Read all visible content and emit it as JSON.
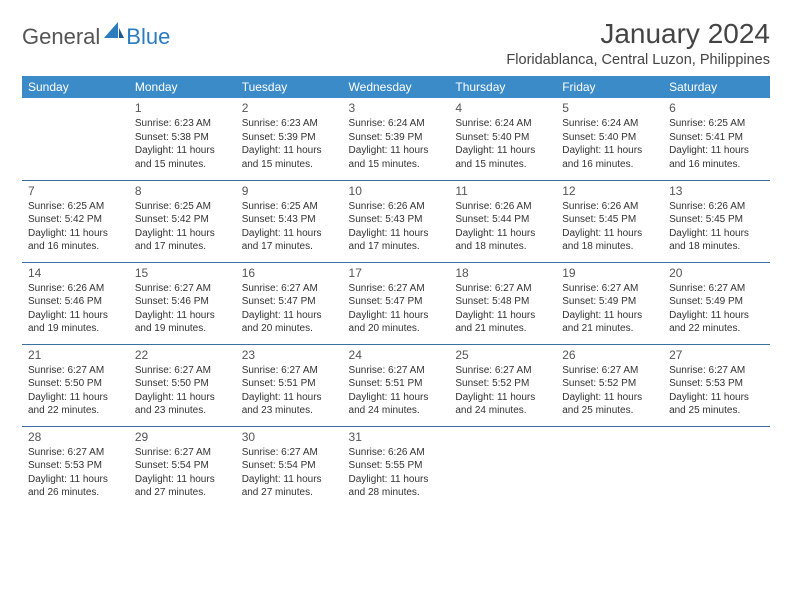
{
  "logo": {
    "part1": "General",
    "part2": "Blue"
  },
  "title": "January 2024",
  "location": "Floridablanca, Central Luzon, Philippines",
  "colors": {
    "header_bg": "#3b8bc9",
    "header_text": "#ffffff",
    "row_border": "#3b6fa0",
    "logo_blue": "#2b7bbf",
    "text": "#333333"
  },
  "weekdays": [
    "Sunday",
    "Monday",
    "Tuesday",
    "Wednesday",
    "Thursday",
    "Friday",
    "Saturday"
  ],
  "weeks": [
    [
      null,
      {
        "n": "1",
        "sr": "Sunrise: 6:23 AM",
        "ss": "Sunset: 5:38 PM",
        "d1": "Daylight: 11 hours",
        "d2": "and 15 minutes."
      },
      {
        "n": "2",
        "sr": "Sunrise: 6:23 AM",
        "ss": "Sunset: 5:39 PM",
        "d1": "Daylight: 11 hours",
        "d2": "and 15 minutes."
      },
      {
        "n": "3",
        "sr": "Sunrise: 6:24 AM",
        "ss": "Sunset: 5:39 PM",
        "d1": "Daylight: 11 hours",
        "d2": "and 15 minutes."
      },
      {
        "n": "4",
        "sr": "Sunrise: 6:24 AM",
        "ss": "Sunset: 5:40 PM",
        "d1": "Daylight: 11 hours",
        "d2": "and 15 minutes."
      },
      {
        "n": "5",
        "sr": "Sunrise: 6:24 AM",
        "ss": "Sunset: 5:40 PM",
        "d1": "Daylight: 11 hours",
        "d2": "and 16 minutes."
      },
      {
        "n": "6",
        "sr": "Sunrise: 6:25 AM",
        "ss": "Sunset: 5:41 PM",
        "d1": "Daylight: 11 hours",
        "d2": "and 16 minutes."
      }
    ],
    [
      {
        "n": "7",
        "sr": "Sunrise: 6:25 AM",
        "ss": "Sunset: 5:42 PM",
        "d1": "Daylight: 11 hours",
        "d2": "and 16 minutes."
      },
      {
        "n": "8",
        "sr": "Sunrise: 6:25 AM",
        "ss": "Sunset: 5:42 PM",
        "d1": "Daylight: 11 hours",
        "d2": "and 17 minutes."
      },
      {
        "n": "9",
        "sr": "Sunrise: 6:25 AM",
        "ss": "Sunset: 5:43 PM",
        "d1": "Daylight: 11 hours",
        "d2": "and 17 minutes."
      },
      {
        "n": "10",
        "sr": "Sunrise: 6:26 AM",
        "ss": "Sunset: 5:43 PM",
        "d1": "Daylight: 11 hours",
        "d2": "and 17 minutes."
      },
      {
        "n": "11",
        "sr": "Sunrise: 6:26 AM",
        "ss": "Sunset: 5:44 PM",
        "d1": "Daylight: 11 hours",
        "d2": "and 18 minutes."
      },
      {
        "n": "12",
        "sr": "Sunrise: 6:26 AM",
        "ss": "Sunset: 5:45 PM",
        "d1": "Daylight: 11 hours",
        "d2": "and 18 minutes."
      },
      {
        "n": "13",
        "sr": "Sunrise: 6:26 AM",
        "ss": "Sunset: 5:45 PM",
        "d1": "Daylight: 11 hours",
        "d2": "and 18 minutes."
      }
    ],
    [
      {
        "n": "14",
        "sr": "Sunrise: 6:26 AM",
        "ss": "Sunset: 5:46 PM",
        "d1": "Daylight: 11 hours",
        "d2": "and 19 minutes."
      },
      {
        "n": "15",
        "sr": "Sunrise: 6:27 AM",
        "ss": "Sunset: 5:46 PM",
        "d1": "Daylight: 11 hours",
        "d2": "and 19 minutes."
      },
      {
        "n": "16",
        "sr": "Sunrise: 6:27 AM",
        "ss": "Sunset: 5:47 PM",
        "d1": "Daylight: 11 hours",
        "d2": "and 20 minutes."
      },
      {
        "n": "17",
        "sr": "Sunrise: 6:27 AM",
        "ss": "Sunset: 5:47 PM",
        "d1": "Daylight: 11 hours",
        "d2": "and 20 minutes."
      },
      {
        "n": "18",
        "sr": "Sunrise: 6:27 AM",
        "ss": "Sunset: 5:48 PM",
        "d1": "Daylight: 11 hours",
        "d2": "and 21 minutes."
      },
      {
        "n": "19",
        "sr": "Sunrise: 6:27 AM",
        "ss": "Sunset: 5:49 PM",
        "d1": "Daylight: 11 hours",
        "d2": "and 21 minutes."
      },
      {
        "n": "20",
        "sr": "Sunrise: 6:27 AM",
        "ss": "Sunset: 5:49 PM",
        "d1": "Daylight: 11 hours",
        "d2": "and 22 minutes."
      }
    ],
    [
      {
        "n": "21",
        "sr": "Sunrise: 6:27 AM",
        "ss": "Sunset: 5:50 PM",
        "d1": "Daylight: 11 hours",
        "d2": "and 22 minutes."
      },
      {
        "n": "22",
        "sr": "Sunrise: 6:27 AM",
        "ss": "Sunset: 5:50 PM",
        "d1": "Daylight: 11 hours",
        "d2": "and 23 minutes."
      },
      {
        "n": "23",
        "sr": "Sunrise: 6:27 AM",
        "ss": "Sunset: 5:51 PM",
        "d1": "Daylight: 11 hours",
        "d2": "and 23 minutes."
      },
      {
        "n": "24",
        "sr": "Sunrise: 6:27 AM",
        "ss": "Sunset: 5:51 PM",
        "d1": "Daylight: 11 hours",
        "d2": "and 24 minutes."
      },
      {
        "n": "25",
        "sr": "Sunrise: 6:27 AM",
        "ss": "Sunset: 5:52 PM",
        "d1": "Daylight: 11 hours",
        "d2": "and 24 minutes."
      },
      {
        "n": "26",
        "sr": "Sunrise: 6:27 AM",
        "ss": "Sunset: 5:52 PM",
        "d1": "Daylight: 11 hours",
        "d2": "and 25 minutes."
      },
      {
        "n": "27",
        "sr": "Sunrise: 6:27 AM",
        "ss": "Sunset: 5:53 PM",
        "d1": "Daylight: 11 hours",
        "d2": "and 25 minutes."
      }
    ],
    [
      {
        "n": "28",
        "sr": "Sunrise: 6:27 AM",
        "ss": "Sunset: 5:53 PM",
        "d1": "Daylight: 11 hours",
        "d2": "and 26 minutes."
      },
      {
        "n": "29",
        "sr": "Sunrise: 6:27 AM",
        "ss": "Sunset: 5:54 PM",
        "d1": "Daylight: 11 hours",
        "d2": "and 27 minutes."
      },
      {
        "n": "30",
        "sr": "Sunrise: 6:27 AM",
        "ss": "Sunset: 5:54 PM",
        "d1": "Daylight: 11 hours",
        "d2": "and 27 minutes."
      },
      {
        "n": "31",
        "sr": "Sunrise: 6:26 AM",
        "ss": "Sunset: 5:55 PM",
        "d1": "Daylight: 11 hours",
        "d2": "and 28 minutes."
      },
      null,
      null,
      null
    ]
  ]
}
